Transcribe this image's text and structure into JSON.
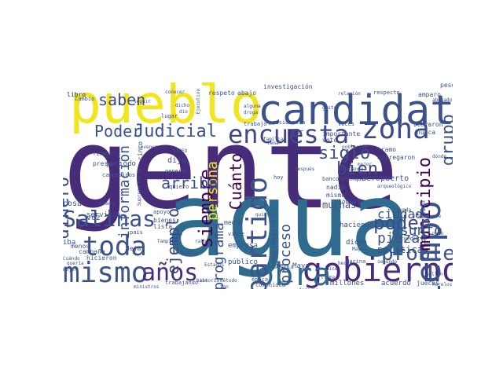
{
  "word_cloud": {
    "background_color": "#ffffff",
    "palette": "viridis",
    "words": [
      {
        "text": "gente",
        "color": "#472c7a"
      },
      {
        "text": "agua",
        "color": "#2f6b8e"
      },
      {
        "text": "pueblo",
        "color": "#f1e51d"
      },
      {
        "text": "candidato",
        "color": "#3b528b"
      },
      {
        "text": "gobierno",
        "color": "#472c7a"
      },
      {
        "text": "obra",
        "color": "#31688e"
      },
      {
        "text": "mismo",
        "color": "#3b528b"
      },
      {
        "text": "toda",
        "color": "#3b528b"
      },
      {
        "text": "tiempo",
        "color": "#3b528b"
      },
      {
        "text": "zona",
        "color": "#3e4989"
      },
      {
        "text": "años",
        "color": "#472c7a"
      },
      {
        "text": "encuesta",
        "color": "#3e4989"
      },
      {
        "text": "partido",
        "color": "#3b528b"
      },
      {
        "text": "Salinas",
        "color": "#3b528b"
      },
      {
        "text": "problema",
        "color": "#3b528b"
      },
      {
        "text": "dinero",
        "color": "#3e4989"
      },
      {
        "text": "siempre",
        "color": "#440154"
      },
      {
        "text": "grupo",
        "color": "#3b528b"
      },
      {
        "text": "municipio",
        "color": "#440154"
      },
      {
        "text": "Judicial",
        "color": "#3b528b"
      },
      {
        "text": "Poder",
        "color": "#3b528b"
      },
      {
        "text": "poder",
        "color": "#3e4989"
      },
      {
        "text": "bien",
        "color": "#3e4989"
      },
      {
        "text": "siglo",
        "color": "#3b528b"
      },
      {
        "text": "ejemplo",
        "color": "#3e4989"
      },
      {
        "text": "información",
        "color": "#3b528b"
      },
      {
        "text": "Cuánto",
        "color": "#440154"
      },
      {
        "text": "persona",
        "color": "#f1e51d"
      },
      {
        "text": "programa",
        "color": "#3b528b"
      },
      {
        "text": "proceso",
        "color": "#3b528b"
      },
      {
        "text": "saben",
        "color": "#3e4989"
      },
      {
        "text": "arriba",
        "color": "#3b528b"
      },
      {
        "text": "asunto",
        "color": "#3b528b"
      },
      {
        "text": "pieza",
        "color": "#3b528b"
      },
      {
        "text": "ciudad",
        "color": "#3b528b"
      },
      {
        "text": "política",
        "color": "#3b528b"
      },
      {
        "text": "aeropuerto",
        "color": "#3b528b"
      },
      {
        "text": "muchas",
        "color": "#3b528b"
      },
      {
        "text": "dijo",
        "color": "#3b528b"
      },
      {
        "text": "haciendo",
        "color": "#3b528b"
      },
      {
        "text": "dicen",
        "color": "#3b528b"
      },
      {
        "text": "vez",
        "color": "#3b528b"
      },
      {
        "text": "cosa",
        "color": "#3b528b"
      },
      {
        "text": "servicio",
        "color": "#3b528b"
      },
      {
        "text": "empresa",
        "color": "#3b528b"
      },
      {
        "text": "empresario",
        "color": "#3b528b"
      },
      {
        "text": "Tren Maya",
        "color": "#3b528b"
      },
      {
        "text": "millones",
        "color": "#3b528b"
      },
      {
        "text": "acuerdo",
        "color": "#3b528b"
      },
      {
        "text": "jueces",
        "color": "#3b528b"
      },
      {
        "text": "dar",
        "color": "#3b528b"
      },
      {
        "text": "nadie",
        "color": "#3b528b"
      },
      {
        "text": "misma",
        "color": "#3b528b"
      },
      {
        "text": "todavía",
        "color": "#3b528b"
      },
      {
        "text": "iba",
        "color": "#3b528b"
      },
      {
        "text": "menos",
        "color": "#3b528b"
      },
      {
        "text": "campaña",
        "color": "#3b528b"
      },
      {
        "text": "deja",
        "color": "#3b528b"
      },
      {
        "text": "público",
        "color": "#3b528b"
      },
      {
        "text": "medio",
        "color": "#3b528b"
      },
      {
        "text": "lista",
        "color": "#3b528b"
      },
      {
        "text": "bienes",
        "color": "#3b528b"
      },
      {
        "text": "ministros",
        "color": "#3b528b"
      },
      {
        "text": "trabajando",
        "color": "#3b528b"
      },
      {
        "text": "hicieron",
        "color": "#3b528b"
      },
      {
        "text": "investigación",
        "color": "#3b528b"
      },
      {
        "text": "respeto",
        "color": "#3b528b"
      },
      {
        "text": "abajo",
        "color": "#3b528b"
      },
      {
        "text": "trabajo",
        "color": "#3b528b"
      },
      {
        "text": "presidencia",
        "color": "#3b528b"
      },
      {
        "text": "respecto",
        "color": "#3b528b"
      },
      {
        "text": "relación",
        "color": "#3b528b"
      },
      {
        "text": "amparo",
        "color": "#3b528b"
      },
      {
        "text": "peso",
        "color": "#3b528b"
      },
      {
        "text": "libro",
        "color": "#3b528b"
      },
      {
        "text": "cambio",
        "color": "#3b528b"
      },
      {
        "text": "lugar",
        "color": "#3b528b"
      },
      {
        "text": "conocer",
        "color": "#3b528b"
      },
      {
        "text": "voto",
        "color": "#3b528b"
      },
      {
        "text": "importante",
        "color": "#3b528b"
      },
      {
        "text": "veces",
        "color": "#3b528b"
      },
      {
        "text": "llevaron",
        "color": "#3b528b"
      },
      {
        "text": "nunca",
        "color": "#3b528b"
      },
      {
        "text": "población",
        "color": "#3b528b"
      },
      {
        "text": "tramo",
        "color": "#3b528b"
      },
      {
        "text": "entregaron",
        "color": "#3b528b"
      },
      {
        "text": "dónde",
        "color": "#3b528b"
      },
      {
        "text": "periodo",
        "color": "#3b528b"
      },
      {
        "text": "campesinos",
        "color": "#3b528b"
      },
      {
        "text": "presa",
        "color": "#3b528b"
      },
      {
        "text": "firmas",
        "color": "#3b528b"
      },
      {
        "text": "VIDEO",
        "color": "#3b528b"
      },
      {
        "text": "cinco",
        "color": "#3b528b"
      },
      {
        "text": "general",
        "color": "#3b528b"
      },
      {
        "text": "quiero",
        "color": "#3b528b"
      },
      {
        "text": "número",
        "color": "#3b528b"
      },
      {
        "text": "apoyo",
        "color": "#3b528b"
      },
      {
        "text": "banco",
        "color": "#3b528b"
      },
      {
        "text": "Palenque",
        "color": "#3b528b"
      },
      {
        "text": "arqueológico",
        "color": "#3b528b"
      },
      {
        "text": "construcción",
        "color": "#3b528b"
      },
      {
        "text": "acueducto",
        "color": "#3b528b"
      },
      {
        "text": "presidente",
        "color": "#3b528b"
      },
      {
        "text": "segundo",
        "color": "#3b528b"
      },
      {
        "text": "Marina",
        "color": "#3b528b"
      },
      {
        "text": "hecho",
        "color": "#3b528b"
      },
      {
        "text": "época",
        "color": "#3b528b"
      },
      {
        "text": "comunidad",
        "color": "#3b528b"
      },
      {
        "text": "justicia",
        "color": "#3b528b"
      },
      {
        "text": "viene",
        "color": "#3b528b"
      },
      {
        "text": "quieren",
        "color": "#3b528b"
      },
      {
        "text": "Tampico",
        "color": "#3b528b"
      },
      {
        "text": "Unidos",
        "color": "#3b528b"
      },
      {
        "text": "manera",
        "color": "#3b528b"
      },
      {
        "text": "alguna",
        "color": "#3b528b"
      },
      {
        "text": "droga",
        "color": "#3b528b"
      },
      {
        "text": "familia",
        "color": "#3b528b"
      },
      {
        "text": "jóvenes",
        "color": "#3b528b"
      },
      {
        "text": "mejor",
        "color": "#3b528b"
      },
      {
        "text": "queda",
        "color": "#3b528b"
      },
      {
        "text": "buena",
        "color": "#3b528b"
      },
      {
        "text": "después",
        "color": "#3b528b"
      },
      {
        "text": "derecho",
        "color": "#3b528b"
      },
      {
        "text": "Morelos",
        "color": "#3b528b"
      },
      {
        "text": "Mayas",
        "color": "#3b528b"
      },
      {
        "text": "millón",
        "color": "#3b528b"
      },
      {
        "text": "abogado",
        "color": "#3b528b"
      },
      {
        "text": "avanzando",
        "color": "#3b528b"
      },
      {
        "text": "tema",
        "color": "#3b528b"
      },
      {
        "text": "hoy",
        "color": "#3b528b"
      },
      {
        "text": "rato",
        "color": "#3b528b"
      },
      {
        "text": "seguir",
        "color": "#3b528b"
      },
      {
        "text": "dicho",
        "color": "#3b528b"
      },
      {
        "text": "dio",
        "color": "#3b528b"
      },
      {
        "text": "mujer",
        "color": "#3b528b"
      },
      {
        "text": "quería",
        "color": "#3b528b"
      },
      {
        "text": "Cuándo",
        "color": "#3b528b"
      },
      {
        "text": "país",
        "color": "#3b528b"
      },
      {
        "text": "cabo",
        "color": "#3b528b"
      },
      {
        "text": "método",
        "color": "#3b528b"
      },
      {
        "text": "tan",
        "color": "#3b528b"
      },
      {
        "text": "llama",
        "color": "#3b528b"
      },
      {
        "text": "dice",
        "color": "#3b528b"
      },
      {
        "text": "Ejecutivo",
        "color": "#3b528b"
      },
      {
        "text": "historia",
        "color": "#3b528b"
      },
      {
        "text": "Suprema Corte",
        "color": "#3b528b"
      },
      {
        "text": "Estados",
        "color": "#3b528b"
      },
      {
        "text": "libro",
        "color": "#3b528b"
      },
      {
        "text": "pudo",
        "color": "#3b528b"
      },
      {
        "text": "gusto",
        "color": "#3b528b"
      }
    ]
  }
}
